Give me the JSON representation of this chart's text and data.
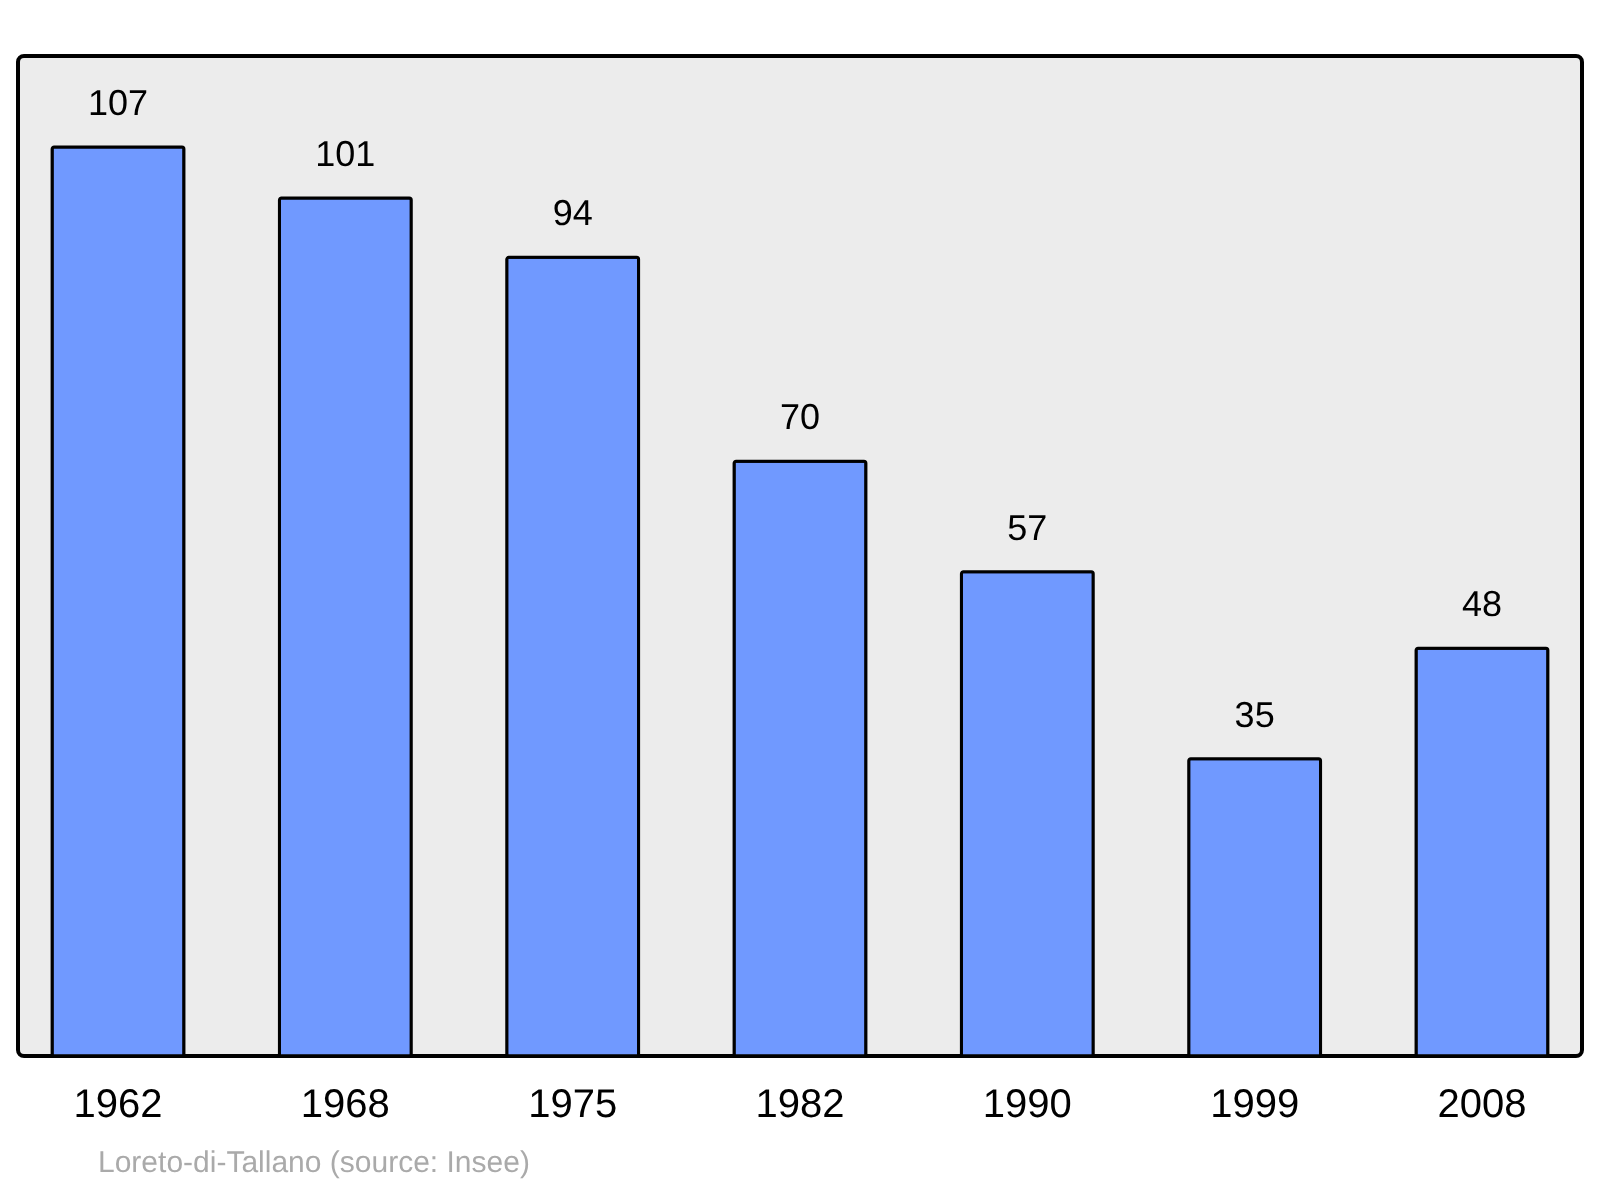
{
  "chart_data": {
    "type": "bar",
    "categories": [
      "1962",
      "1968",
      "1975",
      "1982",
      "1990",
      "1999",
      "2008"
    ],
    "values": [
      107,
      101,
      94,
      70,
      57,
      35,
      48
    ],
    "color": "#7099ff",
    "data_labels": true,
    "annotations": [
      "Loreto-di-Tallano    (source: Insee)"
    ]
  }
}
